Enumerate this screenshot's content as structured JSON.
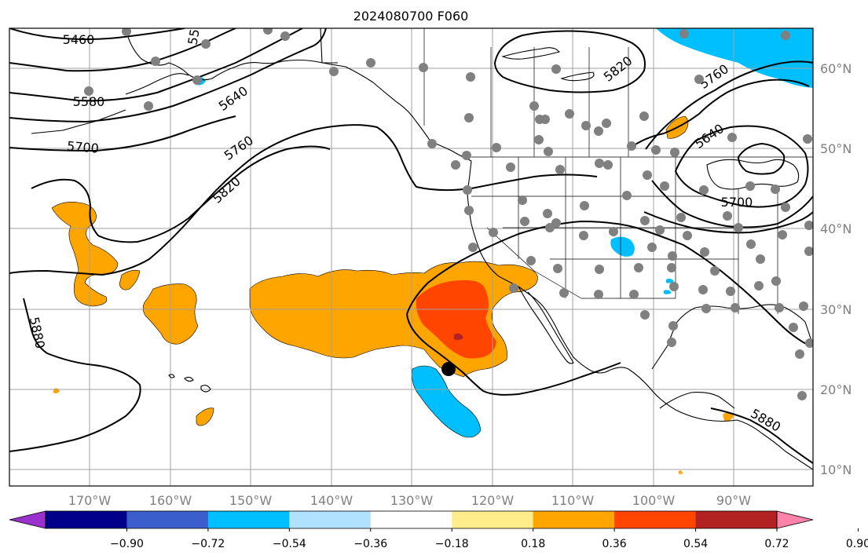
{
  "title": "2024080700 F060",
  "lon_labels": [
    "170°W",
    "160°W",
    "150°W",
    "140°W",
    "130°W",
    "120°W",
    "110°W",
    "100°W",
    "90°W"
  ],
  "lat_labels": [
    "60°N",
    "50°N",
    "40°N",
    "30°N",
    "20°N",
    "10°N"
  ],
  "contour_labels": [
    "5460",
    "5580",
    "5640",
    "5700",
    "5760",
    "5820",
    "5880",
    "5820",
    "5760",
    "5640",
    "5700",
    "5880",
    "55"
  ],
  "colorbar": {
    "ticks": [
      "−0.90",
      "−0.72",
      "−0.54",
      "−0.36",
      "−0.18",
      "0.18",
      "0.36",
      "0.54",
      "0.72",
      "0.90"
    ],
    "colors": [
      "#9932CC",
      "#00008B",
      "#3A5FCD",
      "#00BFFF",
      "#B0E2FF",
      "#FFFFFF",
      "#FFEC8B",
      "#FFA500",
      "#FF4500",
      "#B22222",
      "#FF82AB"
    ]
  },
  "colors": {
    "frame": "#000000",
    "grid": "#a0a0a0",
    "station": "#808080",
    "contour": "#000000",
    "coast": "#000000"
  }
}
